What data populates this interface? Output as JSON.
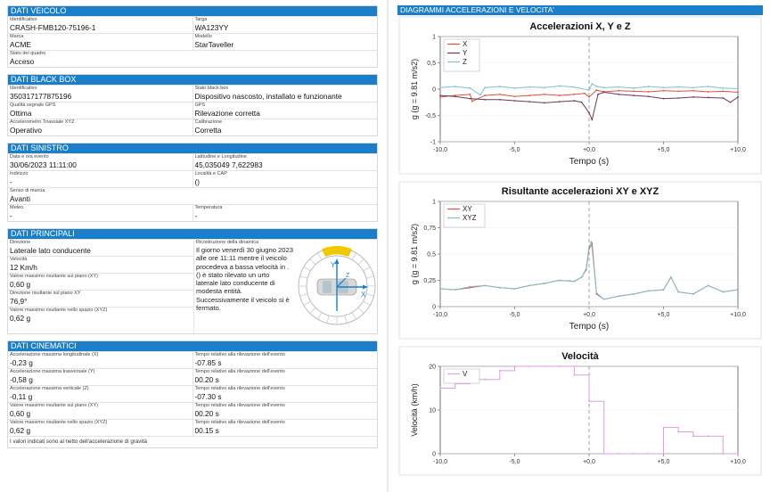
{
  "veicolo": {
    "title": "DATI VEICOLO",
    "rows": [
      [
        {
          "label": "Identificativo",
          "value": "CRASH-FMB120-75196-1"
        },
        {
          "label": "Targa",
          "value": "WA123YY"
        }
      ],
      [
        {
          "label": "Marca",
          "value": "ACME"
        },
        {
          "label": "Modello",
          "value": "StarTaveller"
        }
      ],
      [
        {
          "label": "Stato del quadro",
          "value": "Acceso"
        }
      ]
    ]
  },
  "blackbox": {
    "title": "DATI BLACK BOX",
    "rows": [
      [
        {
          "label": "Identificativo",
          "value": "350317177875196"
        },
        {
          "label": "Stato black box",
          "value": "Dispositivo nascosto, installato e funzionante"
        }
      ],
      [
        {
          "label": "Qualità segnale GPS",
          "value": "Ottima"
        },
        {
          "label": "GPS",
          "value": "Rilevazione corretta"
        }
      ],
      [
        {
          "label": "Accelerometro Triassiale XYZ",
          "value": "Operativo"
        },
        {
          "label": "Calibrazione",
          "value": "Corretta"
        }
      ]
    ]
  },
  "sinistro": {
    "title": "DATI SINISTRO",
    "rows": [
      [
        {
          "label": "Data e ora evento",
          "value": "30/06/2023 11:11:00"
        },
        {
          "label": "Latitudine e Longitudine",
          "value": "45,035049  7,622983"
        }
      ],
      [
        {
          "label": "Indirizzo",
          "value": "-"
        },
        {
          "label": "Località e CAP",
          "value": "()"
        }
      ],
      [
        {
          "label": "Senso di marcia",
          "value": "Avanti"
        }
      ],
      [
        {
          "label": "Meteo",
          "value": "-"
        },
        {
          "label": "Temperatura",
          "value": "-"
        }
      ]
    ]
  },
  "principali": {
    "title": "DATI PRINCIPALI",
    "items": [
      {
        "label": "Direzione",
        "value": "Laterale lato conducente"
      },
      {
        "label": "Velocità",
        "value": "12 Km/h"
      },
      {
        "label": "Valore massimo risultante sul piano (XY)",
        "value": "0,60 g"
      },
      {
        "label": "Direzione risultante sul piano XY",
        "value": "76,9°"
      },
      {
        "label": "Valore massimo risultante nello spazio (XYZ)",
        "value": "0,62 g"
      }
    ],
    "recon_label": "Ricostruzione della dinamica",
    "recon_text": "Il giorno venerdì 30 giugno 2023 alle ore 11:11 mentre il veicolo procedeva a bassa velocità in . () è stato rilevato un urto laterale lato conducente  di modesta entità. Successivamente il veicolo si è fermato.",
    "axis_y": "Y",
    "axis_x": "X",
    "axis_z": "Z"
  },
  "cinematici": {
    "title": "DATI CINEMATICI",
    "rows": [
      [
        {
          "label": "Accelerazione massima longitudinale (X)",
          "value": "-0,23 g"
        },
        {
          "label": "Tempo relativo alla rilevazione dell'evento",
          "value": "-07.85 s"
        }
      ],
      [
        {
          "label": "Accelerazione massima trasversale (Y)",
          "value": "-0,58 g"
        },
        {
          "label": "Tempo relativo alla rilevazione dell'evento",
          "value": "00.20 s"
        }
      ],
      [
        {
          "label": "Accelerazione massima verticale (Z)",
          "value": "-0,11 g"
        },
        {
          "label": "Tempo relativo alla rilevazione dell'evento",
          "value": "-07.30 s"
        }
      ],
      [
        {
          "label": "Valore massimo risultante sul piano (XY)",
          "value": "0,60 g"
        },
        {
          "label": "Tempo relativo alla rilevazione dell'evento",
          "value": "00.20 s"
        }
      ],
      [
        {
          "label": "Valore massimo risultante nello spazio (XYZ)",
          "value": "0,62 g"
        },
        {
          "label": "Tempo relativo alla rilevazione dell'evento",
          "value": "00.15 s"
        }
      ]
    ],
    "note": "I valori indicati sono al netto dell'accelerazione di gravità"
  },
  "charts_header": "DIAGRAMMI ACCELERAZIONI E VELOCITA'",
  "colors": {
    "accent": "#1a7fc8",
    "x": "#e0503c",
    "y": "#6a3a5a",
    "z": "#7fc0cc",
    "xy": "#e0503c",
    "xyz": "#7fc0cc",
    "v": "#e39ae8",
    "tyre": "#f0c800"
  },
  "chart_data": [
    {
      "type": "line",
      "title": "Accelerazioni X, Y e Z",
      "xlabel": "Tempo (s)",
      "ylabel": "g (g = 9.81 m/s2)",
      "xlim": [
        -10,
        10
      ],
      "ylim": [
        -1,
        1
      ],
      "xticks": [
        "-10,0",
        "-5,0",
        "+0,0",
        "+5,0",
        "+10,0"
      ],
      "yticks": [
        "1",
        "0,5",
        "0",
        "-0,5",
        "-1"
      ],
      "legend": "top-left",
      "series": [
        {
          "name": "X",
          "x": [
            -10,
            -9,
            -8,
            -7.85,
            -7,
            -6,
            -5,
            -4,
            -3,
            -2,
            -1,
            -0.3,
            0,
            0.5,
            1,
            2,
            3,
            4,
            5,
            6,
            7,
            8,
            9,
            10
          ],
          "values": [
            -0.15,
            -0.12,
            -0.1,
            -0.23,
            -0.12,
            -0.1,
            -0.14,
            -0.12,
            -0.1,
            -0.12,
            -0.1,
            -0.08,
            -0.15,
            -0.02,
            -0.05,
            -0.03,
            -0.04,
            -0.05,
            -0.03,
            -0.04,
            -0.03,
            -0.05,
            -0.04,
            -0.06
          ]
        },
        {
          "name": "Y",
          "x": [
            -10,
            -9,
            -8,
            -7,
            -6,
            -5,
            -4,
            -3,
            -2,
            -1,
            -0.5,
            0,
            0.2,
            0.6,
            1,
            2,
            3,
            4,
            5,
            6,
            7,
            8,
            9,
            9.5,
            10
          ],
          "values": [
            -0.12,
            -0.14,
            -0.18,
            -0.2,
            -0.2,
            -0.22,
            -0.24,
            -0.26,
            -0.24,
            -0.22,
            -0.25,
            -0.45,
            -0.58,
            -0.1,
            -0.06,
            -0.1,
            -0.12,
            -0.14,
            -0.18,
            -0.17,
            -0.15,
            -0.16,
            -0.17,
            -0.25,
            -0.15
          ]
        },
        {
          "name": "Z",
          "x": [
            -10,
            -9,
            -8,
            -7.3,
            -7,
            -6,
            -5,
            -4,
            -3,
            -2,
            -1,
            0,
            0.2,
            0.5,
            1,
            2,
            3,
            4,
            5,
            6,
            7,
            8,
            9,
            10
          ],
          "values": [
            0.03,
            0.05,
            0.02,
            -0.11,
            0.03,
            0.05,
            0.02,
            0.04,
            0.03,
            0.06,
            0.04,
            -0.02,
            0.1,
            0.05,
            0.03,
            0.04,
            0.02,
            0.05,
            0.03,
            0.04,
            0.03,
            0.05,
            0.02,
            0.01
          ]
        }
      ]
    },
    {
      "type": "line",
      "title": "Risultante accelerazioni XY e XYZ",
      "xlabel": "Tempo (s)",
      "ylabel": "g (g = 9.81 m/s2)",
      "xlim": [
        -10,
        10
      ],
      "ylim": [
        0,
        1
      ],
      "xticks": [
        "-10,0",
        "-5,0",
        "+0,0",
        "+5,0",
        "+10,0"
      ],
      "yticks": [
        "1",
        "0,75",
        "0,5",
        "0,25",
        "0"
      ],
      "legend": "top-left",
      "series": [
        {
          "name": "XY",
          "x": [
            -10,
            -9,
            -8,
            -7,
            -6,
            -5,
            -4,
            -3,
            -2,
            -1,
            -0.5,
            -0.2,
            0,
            0.2,
            0.5,
            1,
            2,
            3,
            4,
            5,
            5.5,
            6,
            7,
            8,
            9,
            10
          ],
          "values": [
            0.17,
            0.16,
            0.18,
            0.2,
            0.18,
            0.17,
            0.2,
            0.22,
            0.25,
            0.24,
            0.28,
            0.35,
            0.55,
            0.6,
            0.12,
            0.07,
            0.1,
            0.12,
            0.15,
            0.16,
            0.28,
            0.14,
            0.12,
            0.2,
            0.14,
            0.16
          ]
        },
        {
          "name": "XYZ",
          "x": [
            -10,
            -9,
            -8,
            -7,
            -6,
            -5,
            -4,
            -3,
            -2,
            -1,
            -0.5,
            -0.2,
            0,
            0.15,
            0.5,
            1,
            2,
            3,
            4,
            5,
            5.5,
            6,
            7,
            8,
            9,
            10
          ],
          "values": [
            0.17,
            0.16,
            0.19,
            0.2,
            0.18,
            0.17,
            0.2,
            0.22,
            0.25,
            0.24,
            0.28,
            0.36,
            0.57,
            0.62,
            0.13,
            0.07,
            0.1,
            0.12,
            0.15,
            0.16,
            0.28,
            0.14,
            0.12,
            0.2,
            0.14,
            0.16
          ]
        }
      ]
    },
    {
      "type": "line",
      "title": "Velocità",
      "xlabel": "",
      "ylabel": "Velocità (km/h)",
      "xlim": [
        -10,
        10
      ],
      "ylim": [
        0,
        20
      ],
      "xticks": [
        "-10,0",
        "-5,0",
        "+0,0",
        "+5,0",
        "+10,0"
      ],
      "yticks": [
        "20",
        "10",
        "0"
      ],
      "legend": "top-left",
      "series": [
        {
          "name": "V",
          "x": [
            -10,
            -9,
            -8,
            -7,
            -6,
            -5,
            -4,
            -3,
            -2,
            -1,
            0,
            1,
            2,
            3,
            4,
            5,
            6,
            7,
            8,
            9,
            10
          ],
          "values": [
            15,
            16,
            17,
            17,
            19,
            20,
            20,
            20,
            20,
            18,
            12,
            0,
            0,
            0,
            0,
            6,
            5,
            4,
            4,
            0,
            0
          ],
          "step": true
        }
      ]
    }
  ]
}
